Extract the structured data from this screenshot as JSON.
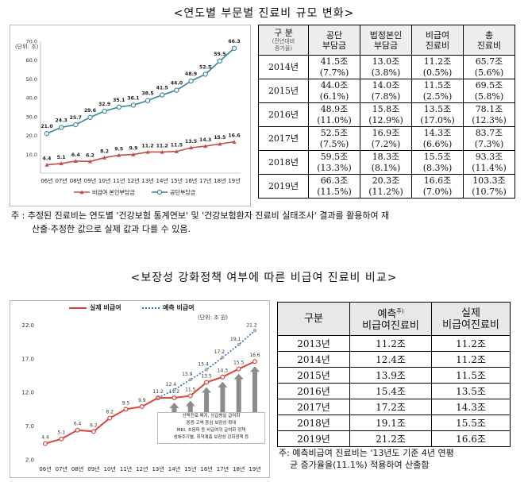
{
  "title1": "<연도별 부문별 진료비 규모 변화>",
  "chart1": {
    "unit_text": "(단위: 조)",
    "legend": [
      "비급여 본인부담금",
      "공단부담금"
    ],
    "colors": {
      "nonpay": "#c0504d",
      "public": "#31859c"
    }
  },
  "table1": {
    "headers": [
      {
        "main": "구 분",
        "sub": "(전년대비\n증가율)"
      },
      {
        "main": "공단\n부담금"
      },
      {
        "main": "법정본인\n부담금"
      },
      {
        "main": "비급여\n진료비"
      },
      {
        "main": "총\n진료비"
      }
    ],
    "rows": [
      {
        "year": "2014년",
        "cells": [
          [
            "41.5조",
            "(7.7%)"
          ],
          [
            "13.0조",
            "(3.8%)"
          ],
          [
            "11.2조",
            "(0.5%)"
          ],
          [
            "65.7조",
            "(5.6%)"
          ]
        ]
      },
      {
        "year": "2015년",
        "cells": [
          [
            "44.0조",
            "(6.1%)"
          ],
          [
            "14.0조",
            "(7.8%)"
          ],
          [
            "11.5조",
            "(2.5%)"
          ],
          [
            "69.5조",
            "(5.8%)"
          ]
        ]
      },
      {
        "year": "2016년",
        "cells": [
          [
            "48.9조",
            "(11.0%)"
          ],
          [
            "15.8조",
            "(12.9%)"
          ],
          [
            "13.5조",
            "(17.0%)"
          ],
          [
            "78.1조",
            "(12.3%)"
          ]
        ]
      },
      {
        "year": "2017년",
        "cells": [
          [
            "52.5조",
            "(7.5%)"
          ],
          [
            "16.9조",
            "(7.2%)"
          ],
          [
            "14.3조",
            "(6.6%)"
          ],
          [
            "83.7조",
            "(7.3%)"
          ]
        ]
      },
      {
        "year": "2018년",
        "cells": [
          [
            "59.5조",
            "(13.3%)"
          ],
          [
            "18.3조",
            "(8.1%)"
          ],
          [
            "15.5조",
            "(8.3%)"
          ],
          [
            "93.3조",
            "(11.4%)"
          ]
        ]
      },
      {
        "year": "2019년",
        "cells": [
          [
            "66.3조",
            "(11.5%)"
          ],
          [
            "20.3조",
            "(11.2%)"
          ],
          [
            "16.6조",
            "(7.0%)"
          ],
          [
            "103.3조",
            "(10.7%)"
          ]
        ]
      }
    ]
  },
  "note1": {
    "line1": "주 : 추정된 진료비는 연도별 '건강보험 통계연보' 및 '건강보험환자 진료비 실태조사' 결과를 활용하여 재",
    "line2": "산출·추정한 값으로 실제 값과 다를 수 있음."
  },
  "title2": "<보장성 강화정책 여부에 따른 비급여 진료비 비교>",
  "chart2": {
    "legend_actual": "실제 비급여",
    "legend_forecast": "예측 비급여",
    "unit_text": "(단위: 조 원)",
    "policy_lines": [
      "선택진료 폐지, 상급병실 급여화",
      "중증·고액 중심 보장성 확대",
      "MRI, 초음파 등 비급여의 급여화 정책",
      "생애주기별, 취약계층 보장성 강화정책 등"
    ],
    "colors": {
      "actual": "#d9453b",
      "forecast": "#2a6ebb"
    }
  },
  "table2": {
    "header_label": "구분",
    "header_forecast": "예측",
    "header_forecast_sup": "주)",
    "header_forecast_sub": "비급여진료비",
    "header_actual": "실제",
    "header_actual_sub": "비급여진료비",
    "rows": [
      [
        "2013년",
        "11.2조",
        "11.2조"
      ],
      [
        "2014년",
        "12.4조",
        "11.2조"
      ],
      [
        "2015년",
        "13.9조",
        "11.5조"
      ],
      [
        "2016년",
        "15.4조",
        "13.5조"
      ],
      [
        "2017년",
        "17.2조",
        "14.3조"
      ],
      [
        "2018년",
        "19.1조",
        "15.5조"
      ],
      [
        "2019년",
        "21.2조",
        "16.6조"
      ]
    ]
  },
  "note2": {
    "line1": "주: 예측비급여 진료비는 '13년도 기준 4년 연평",
    "line2": "균 증가율을(11.1%) 적용하여 산출함"
  },
  "chart_data": [
    {
      "type": "line",
      "title": "",
      "xlabel": "",
      "ylabel": "",
      "x": [
        "06년",
        "07년",
        "08년",
        "09년",
        "10년",
        "11년",
        "12년",
        "13년",
        "14년",
        "15년",
        "16년",
        "17년",
        "18년",
        "19년"
      ],
      "ylim": [
        0,
        70
      ],
      "yticks": [
        0,
        10,
        20,
        30,
        40,
        50,
        60,
        70
      ],
      "ytick_labels": [
        "",
        "10.0",
        "20.0",
        "30.0",
        "40.0",
        "50.0",
        "60.0",
        "70.0"
      ],
      "grid": false,
      "legend_position": "bottom",
      "series": [
        {
          "name": "비급여 본인부담금",
          "values": [
            4.4,
            5.1,
            6.4,
            6.2,
            8.2,
            9.5,
            9.9,
            11.2,
            11.2,
            11.5,
            13.5,
            14.3,
            15.5,
            16.6
          ],
          "labels": [
            "4.4",
            "5.1",
            "6.4",
            "6.2",
            "8.2",
            "9.5",
            "9.9",
            "11.2",
            "11.2",
            "11.5",
            "13.5",
            "14.3",
            "15.5",
            "16.6"
          ]
        },
        {
          "name": "공단부담금",
          "values": [
            21.0,
            24.3,
            25.7,
            29.6,
            32.9,
            35.1,
            36.1,
            38.5,
            41.5,
            44.0,
            48.9,
            52.5,
            59.5,
            66.3
          ],
          "labels": [
            "21.0",
            "24.3",
            "25.7",
            "29.6",
            "32.9",
            "35.1",
            "36.1",
            "38.5",
            "41.5",
            "44.0",
            "48.9",
            "52.5",
            "59.5",
            "66.3"
          ]
        }
      ]
    },
    {
      "type": "line",
      "title": "",
      "xlabel": "",
      "ylabel": "",
      "x": [
        "06년",
        "07년",
        "08년",
        "09년",
        "10년",
        "11년",
        "12년",
        "13년",
        "14년",
        "15년",
        "16년",
        "17년",
        "18년",
        "19년"
      ],
      "ylim": [
        2,
        23
      ],
      "yticks": [
        2,
        7,
        12,
        17,
        22
      ],
      "ytick_labels": [
        "2.0",
        "7.0",
        "12.0",
        "17.0",
        "22.0"
      ],
      "grid": false,
      "legend_position": "top",
      "series": [
        {
          "name": "실제 비급여",
          "x": [
            "06년",
            "07년",
            "08년",
            "09년",
            "10년",
            "11년",
            "12년",
            "13년",
            "14년",
            "15년",
            "16년",
            "17년",
            "18년",
            "19년"
          ],
          "values": [
            4.4,
            5.1,
            6.4,
            6.2,
            8.2,
            9.5,
            9.9,
            11.2,
            11.2,
            11.5,
            13.5,
            14.3,
            15.5,
            16.6
          ],
          "labels": [
            "4.4",
            "5.1",
            "6.4",
            "6.2",
            "8.2",
            "9.5",
            "9.9",
            "11.2",
            "11.2",
            "11.5",
            "13.5",
            "14.3",
            "15.5",
            "16.6"
          ]
        },
        {
          "name": "예측 비급여",
          "x": [
            "13년",
            "14년",
            "15년",
            "16년",
            "17년",
            "18년",
            "19년"
          ],
          "values": [
            11.2,
            12.4,
            13.9,
            15.4,
            17.2,
            19.1,
            21.2
          ],
          "labels": [
            "11.2",
            "12.4",
            "13.9",
            "15.4",
            "17.2",
            "19.1",
            "21.2"
          ]
        }
      ]
    }
  ]
}
